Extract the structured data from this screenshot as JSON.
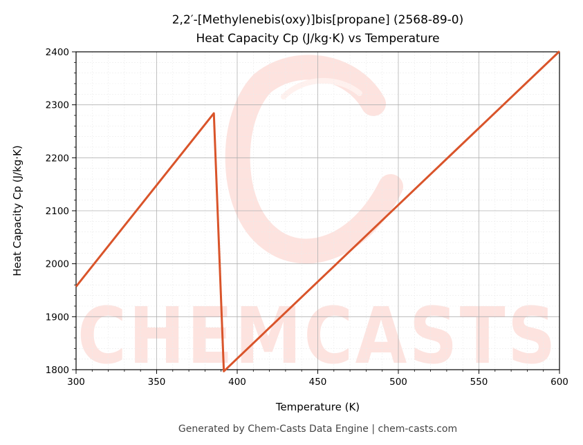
{
  "chart_data": {
    "type": "line",
    "title": "2,2′-[Methylenebis(oxy)]bis[propane] (2568-89-0)",
    "subtitle": "Heat Capacity Cp (J/kg·K) vs Temperature",
    "xlabel": "Temperature (K)",
    "ylabel": "Heat Capacity Cp (J/kg·K)",
    "xlim": [
      300,
      600
    ],
    "ylim": [
      1800,
      2400
    ],
    "x_ticks": [
      300,
      350,
      400,
      450,
      500,
      550,
      600
    ],
    "y_ticks": [
      1800,
      1900,
      2000,
      2100,
      2200,
      2300,
      2400
    ],
    "grid": true,
    "series": [
      {
        "color": "#d9542a",
        "points": [
          {
            "x": 300,
            "y": 1957
          },
          {
            "x": 385.5,
            "y": 2284
          },
          {
            "x": 391.7,
            "y": 1797
          },
          {
            "x": 600,
            "y": 2401
          }
        ]
      }
    ]
  },
  "watermark": {
    "text": "CHEMCASTS",
    "color": "#fde3df"
  },
  "footer": "Generated by Chem-Casts Data Engine | chem-casts.com"
}
